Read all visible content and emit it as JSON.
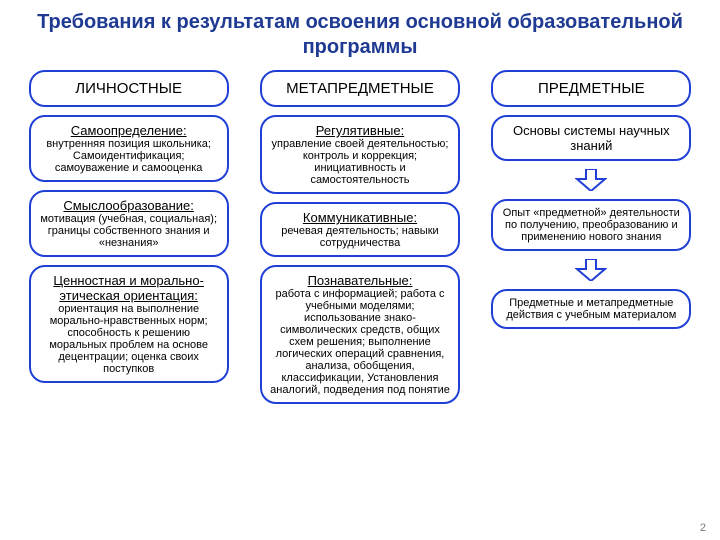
{
  "title": "Требования к результатам освоения основной образовательной программы",
  "pageNumber": "2",
  "colors": {
    "titleColor": "#1f3a93",
    "boxBorder": "#1f3fd6",
    "boxBg": "#ffffff",
    "textColor": "#000000",
    "arrowFill": "#ffffff",
    "arrowStroke": "#1f3fd6"
  },
  "fonts": {
    "title": 20,
    "header": 15,
    "boxTitle": 13,
    "boxBody": 11
  },
  "columns": [
    {
      "header": "ЛИЧНОСТНЫЕ",
      "blocks": [
        {
          "title": "Самоопределение:",
          "body": "внутренняя позиция школьника; Самоидентификация; самоуважение и самооценка"
        },
        {
          "title": "Смыслообразование:",
          "body": "мотивация (учебная, социальная); границы собственного знания и «незнания»"
        },
        {
          "title": "Ценностная и морально-этическая ориентация:",
          "body": "ориентация на выполнение морально-нравственных норм; способность к решению моральных проблем на основе децентрации; оценка своих поступков"
        }
      ]
    },
    {
      "header": "МЕТАПРЕДМЕТНЫЕ",
      "blocks": [
        {
          "title": "Регулятивные:",
          "body": "управление своей деятельностью; контроль и коррекция; инициативность и самостоятельность"
        },
        {
          "title": "Коммуникативные:",
          "body": "речевая деятельность; навыки сотрудничества"
        },
        {
          "title": "Познавательные:",
          "body": "работа с информацией; работа с учебными моделями; использование знако-символических средств, общих схем решения; выполнение логических операций сравнения, анализа, обобщения, классификации, Установления аналогий, подведения под понятие"
        }
      ]
    },
    {
      "header": "ПРЕДМЕТНЫЕ",
      "blocks": [
        {
          "title": "",
          "body": "Основы системы научных знаний",
          "arrowAfter": true,
          "bigBody": true
        },
        {
          "title": "",
          "body": "Опыт «предметной» деятельности по получению, преобразованию и применению нового знания",
          "arrowAfter": true
        },
        {
          "title": "",
          "body": "Предметные и метапредметные действия с учебным материалом"
        }
      ]
    }
  ]
}
